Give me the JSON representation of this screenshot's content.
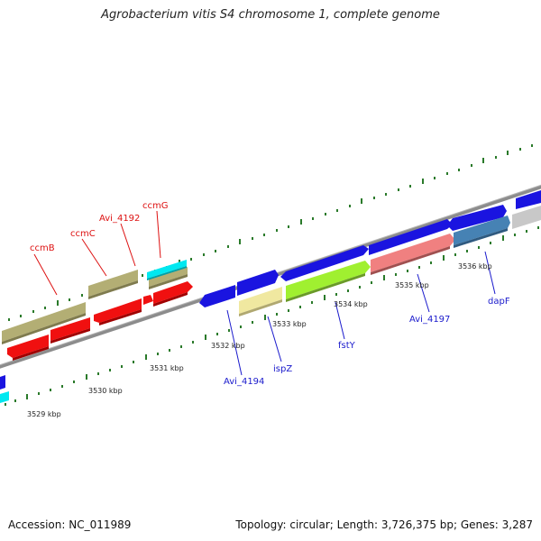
{
  "title": "Agrobacterium vitis S4 chromosome 1, complete genome",
  "footer": {
    "accession": "Accession: NC_011989",
    "summary": "Topology: circular; Length: 3,726,375 bp; Genes: 3,287"
  },
  "colors": {
    "backbone": "#8c8c8c",
    "tick": "#2a7a2a",
    "top_label": "#dd1111",
    "bottom_label": "#1a1acc",
    "blue": "#1a14e0",
    "khaki": "#b3ae74",
    "red": "#f01010",
    "cyan": "#00e8f0",
    "paleyellow": "#f0e8a0",
    "lime": "#a0f030",
    "salmon": "#f08080",
    "steel": "#4682b4",
    "grey": "#c8c8c8"
  },
  "scale_labels": [
    {
      "text": "3529 kbp"
    },
    {
      "text": "3530 kbp"
    },
    {
      "text": "3531 kbp"
    },
    {
      "text": "3532 kbp"
    },
    {
      "text": "3533 kbp"
    },
    {
      "text": "3534 kbp"
    },
    {
      "text": "3535 kbp"
    },
    {
      "text": "3536 kbp"
    }
  ],
  "top_gene_labels": [
    {
      "text": "ccmB"
    },
    {
      "text": "ccmC"
    },
    {
      "text": "Avi_4192"
    },
    {
      "text": "ccmG"
    }
  ],
  "bottom_gene_labels": [
    {
      "text": "Avi_4194"
    },
    {
      "text": "ispZ"
    },
    {
      "text": "fstY"
    },
    {
      "text": "Avi_4197"
    },
    {
      "text": "dapF"
    }
  ]
}
